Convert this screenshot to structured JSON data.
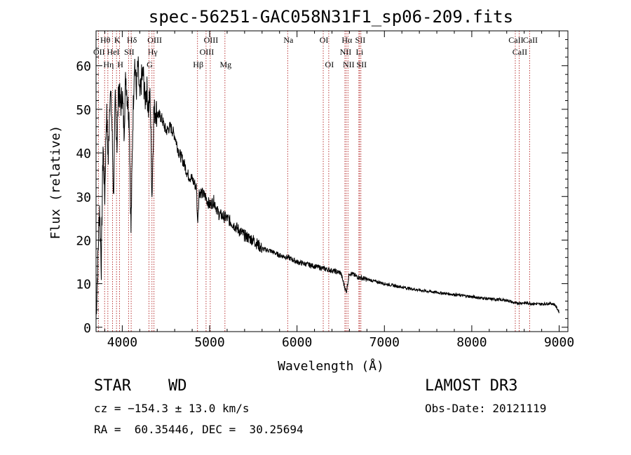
{
  "chart_data": {
    "type": "line",
    "title": "spec-56251-GAC058N31F1_sp06-209.fits",
    "xlabel": "Wavelength (Å)",
    "ylabel": "Flux (relative)",
    "xlim": [
      3700,
      9100
    ],
    "ylim": [
      -1,
      68
    ],
    "xticks": [
      4000,
      5000,
      6000,
      7000,
      8000,
      9000
    ],
    "xtick_labels": [
      "4000",
      "5000",
      "6000",
      "7000",
      "8000",
      "9000"
    ],
    "yticks": [
      0,
      10,
      20,
      30,
      40,
      50,
      60
    ],
    "ytick_labels": [
      "0",
      "10",
      "20",
      "30",
      "40",
      "50",
      "60"
    ],
    "line_color": "#000000",
    "marker_color": "#b22222",
    "series": [
      {
        "name": "flux",
        "x": [
          3700,
          3720,
          3740,
          3760,
          3780,
          3800,
          3820,
          3840,
          3860,
          3880,
          3900,
          3920,
          3940,
          3960,
          3980,
          4000,
          4020,
          4040,
          4060,
          4080,
          4100,
          4120,
          4140,
          4160,
          4180,
          4200,
          4220,
          4240,
          4260,
          4280,
          4300,
          4320,
          4340,
          4360,
          4380,
          4400,
          4450,
          4500,
          4550,
          4600,
          4650,
          4700,
          4750,
          4800,
          4850,
          4861,
          4880,
          4900,
          4950,
          5000,
          5050,
          5100,
          5200,
          5300,
          5400,
          5500,
          5600,
          5700,
          5800,
          5900,
          6000,
          6100,
          6200,
          6300,
          6400,
          6500,
          6563,
          6600,
          6700,
          6800,
          6900,
          7000,
          7200,
          7400,
          7600,
          7800,
          8000,
          8200,
          8400,
          8500,
          8600,
          8700,
          8800,
          8900,
          8950,
          9000
        ],
        "y": [
          2,
          15,
          28,
          14,
          42,
          30,
          50,
          38,
          55,
          48,
          30,
          52,
          42,
          56,
          50,
          54,
          45,
          58,
          52,
          48,
          22,
          46,
          62,
          54,
          60,
          52,
          57,
          58,
          52,
          55,
          50,
          53,
          30,
          49,
          50,
          49,
          48,
          45,
          46,
          44,
          40,
          38,
          35,
          34,
          32,
          24,
          31,
          31,
          30,
          28,
          29,
          26,
          25,
          23,
          21,
          20,
          18,
          17.5,
          16.5,
          16,
          15,
          14.5,
          14,
          13.5,
          13,
          12.5,
          8,
          12.5,
          11.5,
          11,
          10.5,
          10,
          9.2,
          8.5,
          8,
          7.5,
          7,
          6.5,
          6.2,
          5.5,
          5.6,
          5.4,
          5.3,
          5.5,
          5.2,
          3.5
        ]
      }
    ],
    "lines": [
      {
        "name": "H-theta",
        "x": 3798,
        "label": "Hθ",
        "row": 1
      },
      {
        "name": "Ca-II-K",
        "x": 3934,
        "label": "K",
        "row": 1
      },
      {
        "name": "H-delta",
        "x": 4102,
        "label": "Hδ",
        "row": 1
      },
      {
        "name": "O-III-4363",
        "x": 4363,
        "label": "OIII",
        "row": 1
      },
      {
        "name": "O-III-5007",
        "x": 5007,
        "label": "OIII",
        "row": 1
      },
      {
        "name": "O-I-6300",
        "x": 6300,
        "label": "OI",
        "row": 1
      },
      {
        "name": "H-alpha",
        "x": 6563,
        "label": "Hα",
        "row": 1
      },
      {
        "name": "S-II-6716",
        "x": 6716,
        "label": "SII",
        "row": 1
      },
      {
        "name": "Ca-II-8662",
        "x": 8662,
        "label": "CaII",
        "row": 1
      },
      {
        "name": "O-II-3727",
        "x": 3727,
        "label": "OII",
        "row": 2
      },
      {
        "name": "He-I-3889",
        "x": 3889,
        "label": "HeI",
        "row": 2
      },
      {
        "name": "S-II-4072",
        "x": 4072,
        "label": "SII",
        "row": 2
      },
      {
        "name": "H-gamma",
        "x": 4340,
        "label": "Hγ",
        "row": 2
      },
      {
        "name": "O-III-4959",
        "x": 4959,
        "label": "OIII",
        "row": 2
      },
      {
        "name": "N-II-6548",
        "x": 6548,
        "label": "NII",
        "row": 2
      },
      {
        "name": "Li-I-6708",
        "x": 6708,
        "label": "Li",
        "row": 2
      },
      {
        "name": "Ca-II-8542",
        "x": 8542,
        "label": "CaII",
        "row": 2
      },
      {
        "name": "H-eta",
        "x": 3835,
        "label": "Hη",
        "row": 3
      },
      {
        "name": "Ca-II-H",
        "x": 3969,
        "label": "H",
        "row": 3
      },
      {
        "name": "G-band",
        "x": 4305,
        "label": "G",
        "row": 3
      },
      {
        "name": "H-beta",
        "x": 4861,
        "label": "Hβ",
        "row": 3
      },
      {
        "name": "Mg",
        "x": 5175,
        "label": "Mg",
        "row": 3
      },
      {
        "name": "Na",
        "x": 5893,
        "label": "Na",
        "row": 1
      },
      {
        "name": "O-I-6363",
        "x": 6363,
        "label": "OI",
        "row": 3
      },
      {
        "name": "N-II-6583",
        "x": 6583,
        "label": "NII",
        "row": 3
      },
      {
        "name": "S-II-6731",
        "x": 6731,
        "label": "SII",
        "row": 3
      },
      {
        "name": "Ca-II-8498",
        "x": 8498,
        "label": "CaII",
        "row": 1
      }
    ]
  },
  "info": {
    "object_class": "STAR",
    "subclass": "WD",
    "survey": "LAMOST DR3",
    "cz": "cz = −154.3 ± 13.0 km/s",
    "obs_date": "Obs-Date: 20121119",
    "coords": "RA =  60.35446, DEC =  30.25694"
  }
}
